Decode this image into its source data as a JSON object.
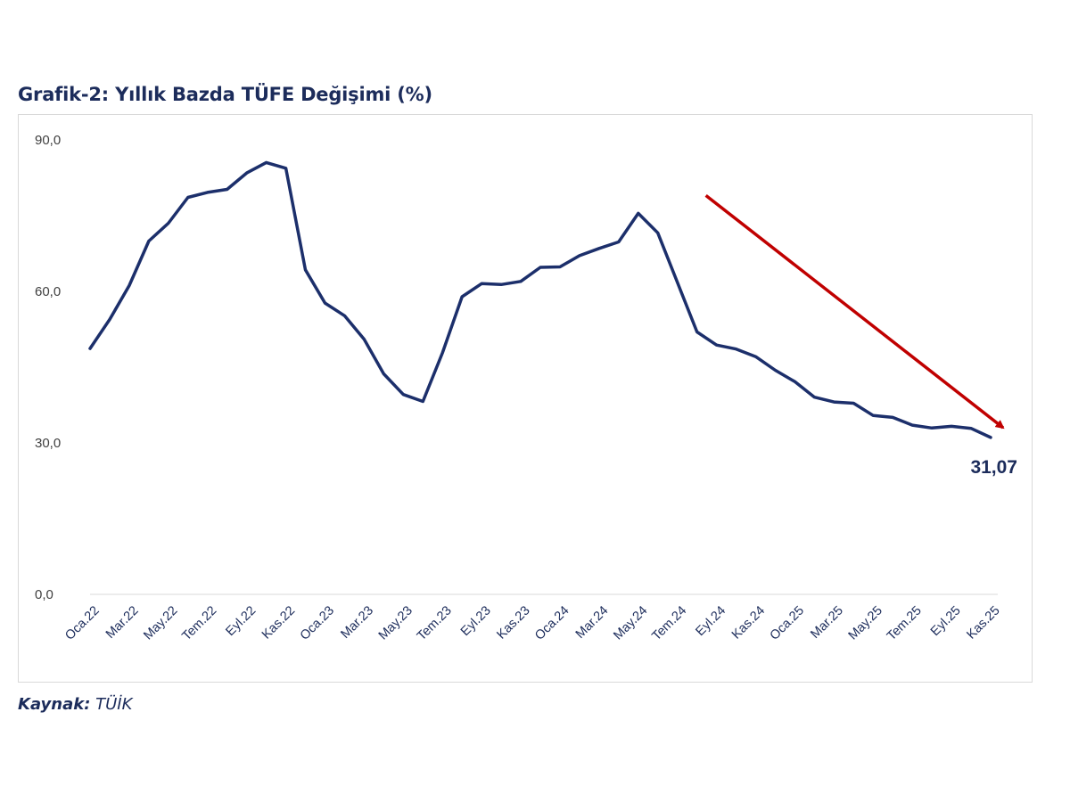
{
  "chart_data": {
    "type": "line",
    "title": "Grafik-2: Yıllık Bazda TÜFE Değişimi (%)",
    "xlabel": "",
    "ylabel": "",
    "ylim": [
      0,
      90
    ],
    "yticks": [
      "90,0",
      "60,0",
      "30,0",
      "0,0"
    ],
    "ytick_values": [
      90,
      60,
      30,
      0
    ],
    "xtick_labels": [
      "Oca.22",
      "Mar.22",
      "May.22",
      "Tem.22",
      "Eyl.22",
      "Kas.22",
      "Oca.23",
      "Mar.23",
      "May.23",
      "Tem.23",
      "Eyl.23",
      "Kas.23",
      "Oca.24",
      "Mar.24",
      "May.24",
      "Tem.24",
      "Eyl.24",
      "Kas.24",
      "Oca.25",
      "Mar.25",
      "May.25",
      "Tem.25",
      "Eyl.25",
      "Kas.25"
    ],
    "grid": false,
    "series": [
      {
        "name": "TÜFE (Yıllık %)",
        "color": "#1c2f6b",
        "x": [
          "Oca.22",
          "Şub.22",
          "Mar.22",
          "Nis.22",
          "May.22",
          "Haz.22",
          "Tem.22",
          "Ağu.22",
          "Eyl.22",
          "Eki.22",
          "Kas.22",
          "Ara.22",
          "Oca.23",
          "Şub.23",
          "Mar.23",
          "Nis.23",
          "May.23",
          "Haz.23",
          "Tem.23",
          "Ağu.23",
          "Eyl.23",
          "Eki.23",
          "Kas.23",
          "Ara.23",
          "Oca.24",
          "Şub.24",
          "Mar.24",
          "Nis.24",
          "May.24",
          "Haz.24",
          "Tem.24",
          "Ağu.24",
          "Eyl.24",
          "Eki.24",
          "Kas.24",
          "Ara.24",
          "Oca.25",
          "Şub.25",
          "Mar.25",
          "Nis.25",
          "May.25",
          "Haz.25",
          "Tem.25",
          "Ağu.25",
          "Eyl.25",
          "Eki.25",
          "Kas.25"
        ],
        "values": [
          48.69,
          54.44,
          61.14,
          69.97,
          73.5,
          78.62,
          79.6,
          80.21,
          83.45,
          85.51,
          84.39,
          64.27,
          57.68,
          55.18,
          50.51,
          43.68,
          39.59,
          38.21,
          47.83,
          58.94,
          61.53,
          61.36,
          61.98,
          64.77,
          64.86,
          67.07,
          68.5,
          69.8,
          75.45,
          71.6,
          61.78,
          51.97,
          49.38,
          48.58,
          47.09,
          44.38,
          42.12,
          39.05,
          38.1,
          37.86,
          35.41,
          35.05,
          33.52,
          32.95,
          33.29,
          32.87,
          31.07
        ],
        "last_value_label": "31,07"
      }
    ],
    "annotations": [
      {
        "type": "arrow",
        "description": "downward trend arrow",
        "color": "#c00000",
        "from": {
          "x": "Ağu.24",
          "y": 79
        },
        "to": {
          "x": "Kas.25",
          "y": 33
        }
      }
    ],
    "source_label": "Kaynak:",
    "source_value": "TÜİK"
  }
}
